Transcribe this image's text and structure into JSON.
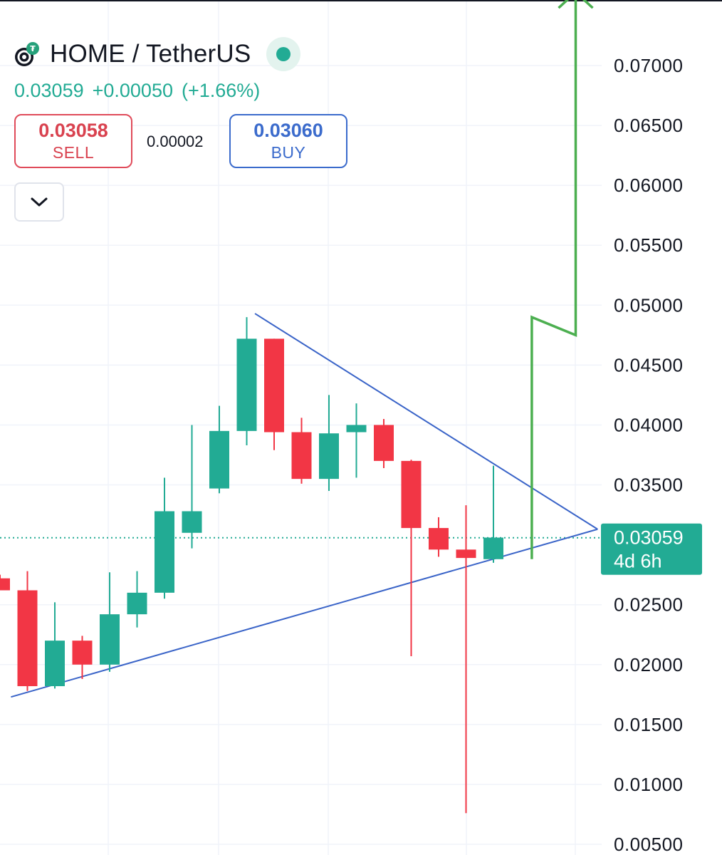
{
  "header": {
    "logo_icon": "home-token-logo-icon",
    "symbol": "HOME / TetherUS",
    "live_status_icon": "live-dot-icon"
  },
  "quote": {
    "last": "0.03059",
    "change": "+0.00050",
    "change_pct": "(+1.66%)"
  },
  "trade": {
    "sell_price": "0.03058",
    "sell_label": "SELL",
    "spread": "0.00002",
    "buy_price": "0.03060",
    "buy_label": "BUY"
  },
  "toggle": {
    "icon": "chevron-down-icon"
  },
  "colors": {
    "up": "#22ab94",
    "down": "#f23645",
    "trendline": "#3a64c8",
    "projection": "#4caf50",
    "grid": "#f0f3fa"
  },
  "chart_data": {
    "type": "candlestick",
    "title": "",
    "y_axis": {
      "ylim": [
        0.0045,
        0.0768
      ],
      "ticks": [
        "0.07000",
        "0.06500",
        "0.06000",
        "0.05500",
        "0.05000",
        "0.04500",
        "0.04000",
        "0.03500",
        "0.02500",
        "0.02000",
        "0.01500",
        "0.01000",
        "0.00500"
      ],
      "position": "right"
    },
    "current_price_tag": {
      "price": "0.03059",
      "countdown": "4d 6h",
      "value": 0.03059
    },
    "candles": [
      {
        "open": 0.0272,
        "high": 0.0275,
        "low": 0.0262,
        "close": 0.0262
      },
      {
        "open": 0.0262,
        "high": 0.0278,
        "low": 0.0178,
        "close": 0.0182
      },
      {
        "open": 0.0182,
        "high": 0.0252,
        "low": 0.018,
        "close": 0.022
      },
      {
        "open": 0.022,
        "high": 0.0224,
        "low": 0.0188,
        "close": 0.02
      },
      {
        "open": 0.02,
        "high": 0.0277,
        "low": 0.0194,
        "close": 0.0242
      },
      {
        "open": 0.0242,
        "high": 0.0278,
        "low": 0.0231,
        "close": 0.026
      },
      {
        "open": 0.026,
        "high": 0.0356,
        "low": 0.0255,
        "close": 0.0328
      },
      {
        "open": 0.031,
        "high": 0.04,
        "low": 0.0297,
        "close": 0.0328
      },
      {
        "open": 0.0347,
        "high": 0.0416,
        "low": 0.0343,
        "close": 0.0395
      },
      {
        "open": 0.0395,
        "high": 0.049,
        "low": 0.0383,
        "close": 0.0472
      },
      {
        "open": 0.0472,
        "high": 0.0472,
        "low": 0.0379,
        "close": 0.0394
      },
      {
        "open": 0.0394,
        "high": 0.0406,
        "low": 0.0351,
        "close": 0.0355
      },
      {
        "open": 0.0355,
        "high": 0.0425,
        "low": 0.0345,
        "close": 0.0393
      },
      {
        "open": 0.0394,
        "high": 0.0418,
        "low": 0.0356,
        "close": 0.04
      },
      {
        "open": 0.04,
        "high": 0.0405,
        "low": 0.0364,
        "close": 0.037
      },
      {
        "open": 0.037,
        "high": 0.0371,
        "low": 0.0207,
        "close": 0.0314
      },
      {
        "open": 0.0314,
        "high": 0.0323,
        "low": 0.029,
        "close": 0.0296
      },
      {
        "open": 0.0296,
        "high": 0.0333,
        "low": 0.0076,
        "close": 0.0289
      },
      {
        "open": 0.0288,
        "high": 0.0366,
        "low": 0.0285,
        "close": 0.0306
      }
    ],
    "trendlines": [
      {
        "name": "",
        "from": {
          "candle": 0.4,
          "value": 0.0173
        },
        "to": {
          "candle": 21.8,
          "value": 0.0313
        }
      },
      {
        "name": "",
        "from": {
          "candle": 9.3,
          "value": 0.0493
        },
        "to": {
          "candle": 21.8,
          "value": 0.0313
        }
      }
    ],
    "projection_path": [
      {
        "candle": 19.4,
        "value": 0.0288
      },
      {
        "candle": 19.4,
        "value": 0.049
      },
      {
        "candle": 21.0,
        "value": 0.0475
      },
      {
        "candle": 21.0,
        "value": 0.076
      }
    ],
    "grid": true,
    "legend": "none"
  }
}
